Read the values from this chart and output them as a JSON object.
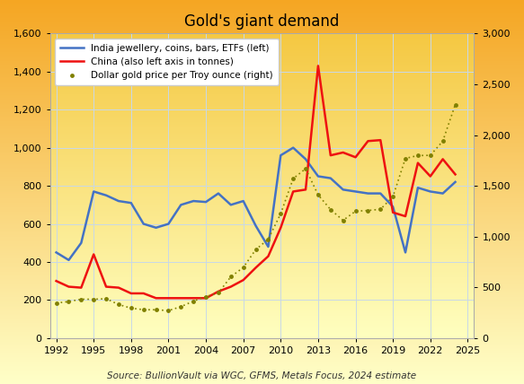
{
  "title": "Gold's giant demand",
  "source_text": "Source: BullionVault via WGC, GFMS, Metals Focus, 2024 estimate",
  "legend_entries": [
    "India jewellery, coins, bars, ETFs (left)",
    "China (also left axis in tonnes)",
    "Dollar gold price per Troy ounce (right)"
  ],
  "years": [
    1992,
    1993,
    1994,
    1995,
    1996,
    1997,
    1998,
    1999,
    2000,
    2001,
    2002,
    2003,
    2004,
    2005,
    2006,
    2007,
    2008,
    2009,
    2010,
    2011,
    2012,
    2013,
    2014,
    2015,
    2016,
    2017,
    2018,
    2019,
    2020,
    2021,
    2022,
    2023,
    2024
  ],
  "india": [
    450,
    410,
    500,
    770,
    750,
    720,
    710,
    600,
    580,
    600,
    700,
    720,
    715,
    760,
    700,
    720,
    590,
    480,
    960,
    1000,
    940,
    850,
    840,
    780,
    770,
    760,
    760,
    690,
    450,
    790,
    770,
    760,
    820
  ],
  "china": [
    300,
    270,
    265,
    440,
    270,
    265,
    235,
    235,
    210,
    210,
    210,
    210,
    210,
    245,
    270,
    305,
    370,
    430,
    580,
    770,
    780,
    1430,
    960,
    975,
    950,
    1035,
    1040,
    660,
    640,
    920,
    850,
    940,
    860
  ],
  "gold_price": [
    345,
    360,
    383,
    383,
    388,
    331,
    295,
    280,
    279,
    271,
    310,
    364,
    409,
    445,
    604,
    696,
    872,
    974,
    1225,
    1571,
    1669,
    1411,
    1266,
    1160,
    1250,
    1257,
    1269,
    1393,
    1770,
    1798,
    1800,
    1940,
    2300
  ],
  "india_color": "#4472c4",
  "china_color": "#ee1111",
  "gold_color": "#808000",
  "background_top": "#f5a623",
  "background_bottom": "#ffffc8",
  "plot_bg_top": "#f5c842",
  "plot_bg_bottom": "#ffffc0",
  "grid_color": "#c8d8e8",
  "left_ylim": [
    0,
    1600
  ],
  "right_ylim": [
    0,
    3000
  ],
  "left_yticks": [
    0,
    200,
    400,
    600,
    800,
    1000,
    1200,
    1400,
    1600
  ],
  "right_yticks": [
    0,
    500,
    1000,
    1500,
    2000,
    2500,
    3000
  ],
  "xlim": [
    1991.5,
    2025.5
  ],
  "xticks": [
    1992,
    1995,
    1998,
    2001,
    2004,
    2007,
    2010,
    2013,
    2016,
    2019,
    2022,
    2025
  ]
}
